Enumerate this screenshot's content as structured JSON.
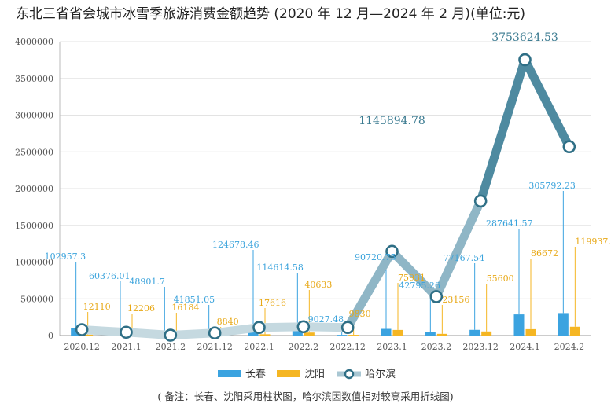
{
  "chart_data": {
    "type": "bar",
    "title": "东北三省省会城市冰雪季旅游消费金额趋势 (2020 年 12 月—2024 年 2 月)(单位:元)",
    "note": "( 备注：长春、沈阳采用柱状图，哈尔滨因数值相对较高采用折线图)",
    "categories": [
      "2020.12",
      "2021.1",
      "2021.2",
      "2021.12",
      "2022.1",
      "2022.2",
      "2022.12",
      "2023.1",
      "2023.2",
      "2023.12",
      "2024.1",
      "2024.2"
    ],
    "ylim": [
      0,
      4000000
    ],
    "yticks": [
      0,
      500000,
      1000000,
      1500000,
      2000000,
      2500000,
      3000000,
      3500000,
      4000000
    ],
    "grid": true,
    "legend_position": "bottom",
    "series": [
      {
        "name": "长春",
        "kind": "bar",
        "color": "#3ba3e0",
        "values": [
          102957.3,
          60376.01,
          48901.7,
          41851.05,
          124678.46,
          114614.58,
          9027.48,
          90720.75,
          42795.26,
          77167.54,
          287641.57,
          305792.23
        ],
        "labels": [
          "102957.3",
          "60376.01",
          "48901.7",
          "41851.05",
          "124678.46",
          "114614.58",
          "9027.48",
          "90720.75",
          "42795.26",
          "77167.54",
          "287641.57",
          "305792.23"
        ]
      },
      {
        "name": "沈阳",
        "kind": "bar",
        "color": "#f5b623",
        "values": [
          12110,
          12206,
          16184,
          8840,
          17616,
          40633,
          9830,
          75931,
          23156,
          55600,
          86672,
          119937.2
        ],
        "labels": [
          "12110",
          "12206",
          "16184",
          "8840",
          "17616",
          "40633",
          "9830",
          "75931",
          "23156",
          "55600",
          "86672",
          "119937.2"
        ]
      },
      {
        "name": "哈尔滨",
        "kind": "line",
        "color": "#5b93a8",
        "values": [
          80000,
          45000,
          5000,
          35000,
          110000,
          120000,
          110000,
          1145894.78,
          530000,
          1830000,
          3753624.53,
          2570000
        ],
        "labels": [
          "",
          "",
          "",
          "",
          "",
          "",
          "",
          "1145894.78",
          "",
          "",
          "3753624.53",
          ""
        ]
      }
    ]
  }
}
